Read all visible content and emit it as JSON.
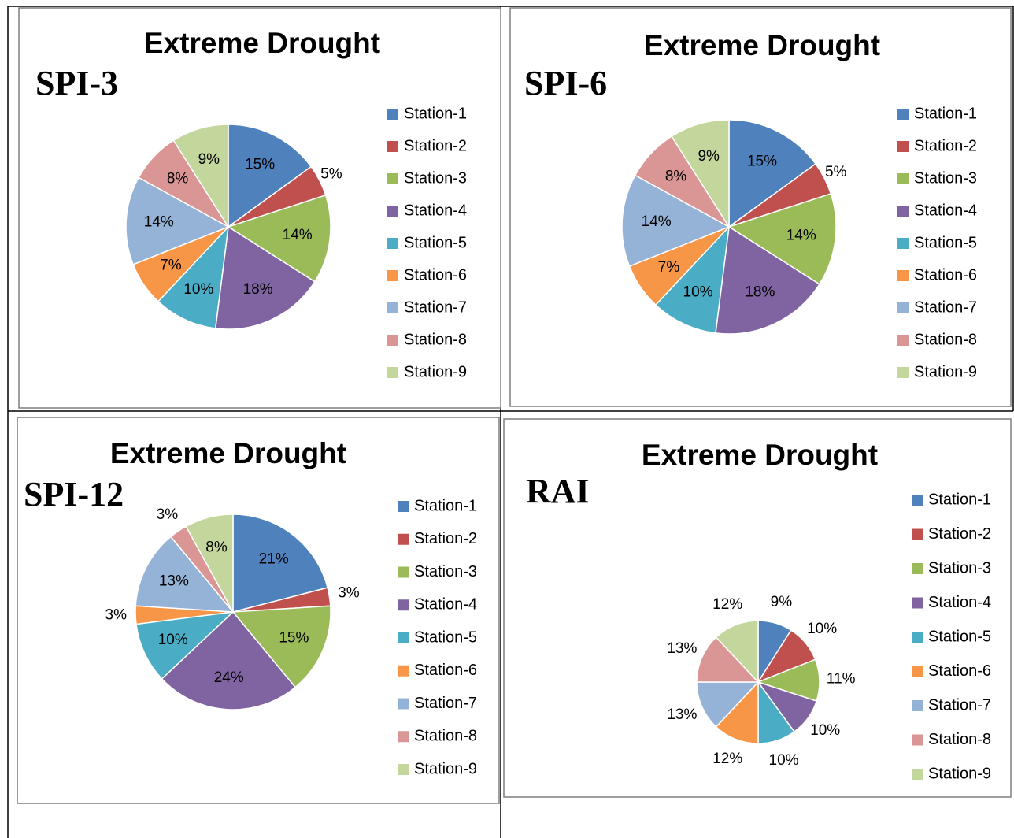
{
  "chart_data": [
    {
      "type": "pie",
      "title": "Extreme Drought",
      "subtitle": "SPI-3",
      "categories": [
        "Station-1",
        "Station-2",
        "Station-3",
        "Station-4",
        "Station-5",
        "Station-6",
        "Station-7",
        "Station-8",
        "Station-9"
      ],
      "values": [
        15,
        5,
        14,
        18,
        10,
        7,
        14,
        8,
        9
      ],
      "value_labels": [
        "15%",
        "5%",
        "14%",
        "18%",
        "10%",
        "7%",
        "14%",
        "8%",
        "9%"
      ],
      "colors": [
        "#4f81bd",
        "#c0504d",
        "#9bbb59",
        "#8064a2",
        "#4bacc6",
        "#f79646",
        "#95b3d7",
        "#d99694",
        "#c3d69b"
      ],
      "legend": "right"
    },
    {
      "type": "pie",
      "title": "Extreme Drought",
      "subtitle": "SPI-6",
      "categories": [
        "Station-1",
        "Station-2",
        "Station-3",
        "Station-4",
        "Station-5",
        "Station-6",
        "Station-7",
        "Station-8",
        "Station-9"
      ],
      "values": [
        15,
        5,
        14,
        18,
        10,
        7,
        14,
        8,
        9
      ],
      "value_labels": [
        "15%",
        "5%",
        "14%",
        "18%",
        "10%",
        "7%",
        "14%",
        "8%",
        "9%"
      ],
      "colors": [
        "#4f81bd",
        "#c0504d",
        "#9bbb59",
        "#8064a2",
        "#4bacc6",
        "#f79646",
        "#95b3d7",
        "#d99694",
        "#c3d69b"
      ],
      "legend": "right"
    },
    {
      "type": "pie",
      "title": "Extreme Drought",
      "subtitle": "SPI-12",
      "categories": [
        "Station-1",
        "Station-2",
        "Station-3",
        "Station-4",
        "Station-5",
        "Station-6",
        "Station-7",
        "Station-8",
        "Station-9"
      ],
      "values": [
        21,
        3,
        15,
        24,
        10,
        3,
        13,
        3,
        8
      ],
      "value_labels": [
        "21%",
        "3%",
        "15%",
        "24%",
        "10%",
        "3%",
        "13%",
        "3%",
        "8%"
      ],
      "colors": [
        "#4f81bd",
        "#c0504d",
        "#9bbb59",
        "#8064a2",
        "#4bacc6",
        "#f79646",
        "#95b3d7",
        "#d99694",
        "#c3d69b"
      ],
      "legend": "right"
    },
    {
      "type": "pie",
      "title": "Extreme Drought",
      "subtitle": "RAI",
      "categories": [
        "Station-1",
        "Station-2",
        "Station-3",
        "Station-4",
        "Station-5",
        "Station-6",
        "Station-7",
        "Station-8",
        "Station-9"
      ],
      "values": [
        9,
        10,
        11,
        10,
        10,
        12,
        13,
        13,
        12
      ],
      "value_labels": [
        "9%",
        "10%",
        "11%",
        "10%",
        "10%",
        "12%",
        "13%",
        "13%",
        "12%"
      ],
      "colors": [
        "#4f81bd",
        "#c0504d",
        "#9bbb59",
        "#8064a2",
        "#4bacc6",
        "#f79646",
        "#95b3d7",
        "#d99694",
        "#c3d69b"
      ],
      "legend": "right"
    }
  ]
}
